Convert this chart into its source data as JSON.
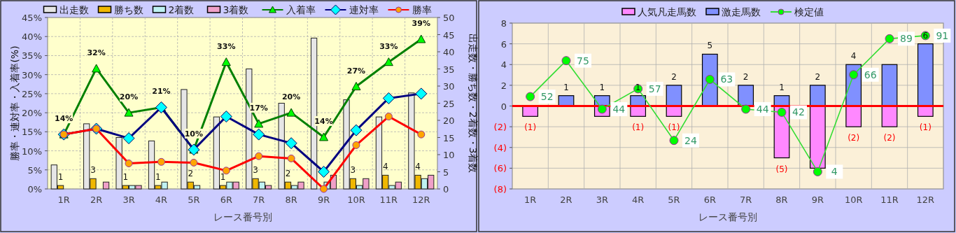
{
  "chart_data": [
    {
      "type": "bar",
      "xlabel": "レース番号別",
      "ylabel": "勝率・連対率・入着率(%)",
      "y2label": "出走数・勝ち数・2着数・3着数",
      "categories": [
        "1R",
        "2R",
        "3R",
        "4R",
        "5R",
        "6R",
        "7R",
        "8R",
        "9R",
        "10R",
        "11R",
        "12R"
      ],
      "ylim": [
        0,
        45
      ],
      "yticks": [
        {
          "value": 0,
          "label": "0%"
        },
        {
          "value": 5,
          "label": "5%"
        },
        {
          "value": 10,
          "label": "10%"
        },
        {
          "value": 15,
          "label": "15%"
        },
        {
          "value": 20,
          "label": "20%"
        },
        {
          "value": 25,
          "label": "25%"
        },
        {
          "value": 30,
          "label": "30%"
        },
        {
          "value": 35,
          "label": "35%"
        },
        {
          "value": 40,
          "label": "40%"
        },
        {
          "value": 45,
          "label": "45%"
        }
      ],
      "y2lim": [
        0,
        50
      ],
      "y2ticks": [
        0,
        5,
        10,
        15,
        20,
        25,
        30,
        35,
        40,
        45,
        50
      ],
      "grid": true,
      "legend": "top",
      "series": [
        {
          "name": "出走数",
          "axis": "y2",
          "color": "#e6e6e6",
          "values": [
            7,
            19,
            15,
            14,
            29,
            21,
            35,
            25,
            44,
            26,
            21,
            28
          ]
        },
        {
          "name": "勝ち数",
          "axis": "y2",
          "color": "#f0b800",
          "values": [
            1,
            3,
            1,
            1,
            2,
            1,
            3,
            2,
            0,
            3,
            4,
            4
          ],
          "value_labels": [
            "1",
            "3",
            "1",
            "1",
            "2",
            "1",
            "3",
            "2",
            null,
            "3",
            "4",
            "4"
          ]
        },
        {
          "name": "2着数",
          "axis": "y2",
          "color": "#bff2f2",
          "values": [
            0,
            0,
            1,
            2,
            1,
            2,
            2,
            1,
            2,
            1,
            1,
            3
          ]
        },
        {
          "name": "3着数",
          "axis": "y2",
          "color": "#f0a0c8",
          "values": [
            0,
            2,
            1,
            0,
            0,
            2,
            1,
            2,
            4,
            3,
            2,
            4
          ]
        },
        {
          "name": "入着率",
          "type": "line",
          "color": "#008000",
          "marker": "triangle",
          "colors": [
            "#00ff00",
            "#00ff00",
            "#00ff00",
            "#00ff00",
            "#00ff00",
            "#00ff00",
            "#00ff00",
            "#00ff00",
            "#00ff00",
            "#00ff00",
            "#00ff00",
            "#00ff00"
          ],
          "values": [
            14.3,
            31.6,
            20.0,
            21.4,
            10.3,
            33.3,
            17.1,
            20.0,
            13.6,
            26.9,
            33.3,
            39.3
          ],
          "value_labels": [
            "14%",
            "32%",
            "20%",
            "21%",
            "10%",
            "33%",
            "17%",
            "20%",
            "14%",
            "27%",
            "33%",
            "39%"
          ]
        },
        {
          "name": "連対率",
          "type": "line",
          "color": "#000080",
          "marker": "diamond",
          "colors": [
            "#00ffff",
            "#00ffff",
            "#00ffff",
            "#00ffff",
            "#00ffff",
            "#00ffff",
            "#00ffff",
            "#00ffff",
            "#00ffff",
            "#00ffff",
            "#00ffff",
            "#00ffff"
          ],
          "values": [
            14.3,
            15.8,
            13.3,
            21.4,
            10.3,
            19.0,
            14.3,
            12.0,
            4.5,
            15.4,
            23.8,
            25.0
          ]
        },
        {
          "name": "勝率",
          "type": "line",
          "color": "#ff0000",
          "marker": "circle",
          "colors": [
            "#ffa500",
            "#ffa500",
            "#ffa500",
            "#ffa500",
            "#ffa500",
            "#ffa500",
            "#ffa500",
            "#ffa500",
            "#ffa500",
            "#ffa500",
            "#ffa500",
            "#ffa500"
          ],
          "values": [
            14.3,
            15.8,
            6.7,
            7.1,
            6.9,
            4.8,
            8.6,
            8.0,
            0,
            11.5,
            19.0,
            14.3
          ]
        }
      ]
    },
    {
      "type": "bar",
      "xlabel": "レース番号別",
      "categories": [
        "1R",
        "2R",
        "3R",
        "4R",
        "5R",
        "6R",
        "7R",
        "8R",
        "9R",
        "10R",
        "11R",
        "12R"
      ],
      "ylim": [
        -8,
        8
      ],
      "yticks": [
        {
          "value": -8,
          "label": "(8)"
        },
        {
          "value": -6,
          "label": "(6)"
        },
        {
          "value": -4,
          "label": "(4)"
        },
        {
          "value": -2,
          "label": "(2)"
        },
        0,
        2,
        4,
        6,
        8
      ],
      "y2lim": [
        -7,
        99
      ],
      "stacked": true,
      "grid": true,
      "legend": "top",
      "ref_lines": [
        {
          "axis": "y",
          "value": 0,
          "color": "#ff0000"
        }
      ],
      "series": [
        {
          "name": "人気凡走馬数",
          "color": "#ff88ff",
          "values": [
            -1,
            0,
            -1,
            -1,
            -1,
            0,
            0,
            -5,
            -6,
            -2,
            -2,
            -1
          ],
          "value_labels": [
            "(1)",
            null,
            null,
            "(1)",
            "(1)",
            null,
            null,
            "(5)",
            null,
            "(2)",
            "(2)",
            "(1)"
          ]
        },
        {
          "name": "激走馬数",
          "color": "#8090ff",
          "values": [
            0,
            1,
            1,
            1,
            2,
            5,
            2,
            1,
            2,
            4,
            4,
            6
          ],
          "value_labels": [
            null,
            "1",
            "1",
            "1",
            "2",
            "5",
            "2",
            "1",
            "2",
            "4",
            null,
            "6"
          ]
        },
        {
          "name": "検定値",
          "type": "line",
          "axis": "y2",
          "color": "#33dd33",
          "marker": "circle",
          "colors": [
            "#00ff00",
            "#00ff00",
            "#00ff00",
            "#00ff00",
            "#00ff00",
            "#00ff00",
            "#00ff00",
            "#00ff00",
            "#00ff00",
            "#00ff00",
            "#00ff00",
            "#00ff00"
          ],
          "values": [
            52,
            75,
            44,
            57,
            24,
            63,
            44,
            42,
            4,
            66,
            89,
            91
          ],
          "value_labels": [
            "52",
            "75",
            "44",
            "57",
            "24",
            "63",
            "44",
            "42",
            "4",
            "66",
            "89",
            "91"
          ]
        }
      ]
    }
  ]
}
